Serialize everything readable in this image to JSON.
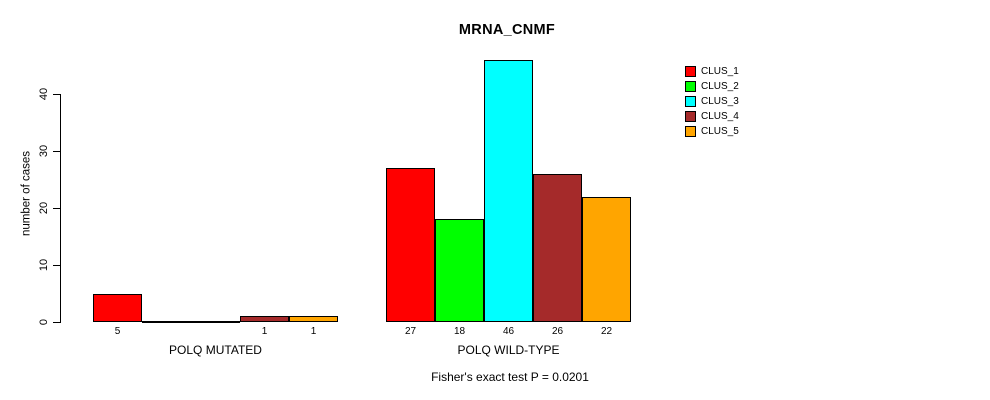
{
  "title": "MRNA_CNMF",
  "subtitle": "Fisher's exact test P = 0.0201",
  "ylabel": "number of cases",
  "colors": {
    "background": "#FFFFFF",
    "axis": "#000000",
    "text": "#000000"
  },
  "chart_data": {
    "type": "bar",
    "title": "MRNA_CNMF",
    "xlabel": "",
    "ylabel": "number of cases",
    "ylim": [
      0,
      46
    ],
    "yticks": [
      0,
      10,
      20,
      30,
      40
    ],
    "grid": false,
    "legend_position": "right",
    "show_zero_value_labels": false,
    "categories": [
      "POLQ MUTATED",
      "POLQ WILD-TYPE"
    ],
    "series": [
      {
        "name": "CLUS_1",
        "color": "#FF0000",
        "values": [
          5,
          27
        ]
      },
      {
        "name": "CLUS_2",
        "color": "#00FF00",
        "values": [
          0,
          18
        ]
      },
      {
        "name": "CLUS_3",
        "color": "#00FFFF",
        "values": [
          0,
          46
        ]
      },
      {
        "name": "CLUS_4",
        "color": "#A52A2A",
        "values": [
          1,
          26
        ]
      },
      {
        "name": "CLUS_5",
        "color": "#FFA500",
        "values": [
          1,
          22
        ]
      }
    ],
    "annotation": "Fisher's exact test P = 0.0201"
  }
}
